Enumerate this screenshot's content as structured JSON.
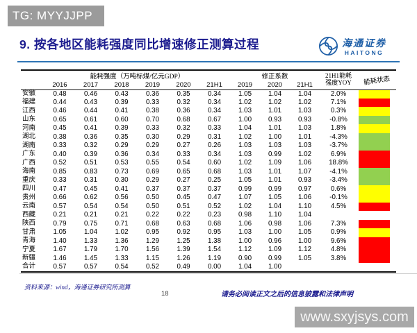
{
  "watermark_top": "TG: MYYJJPP",
  "title": "9. 按各地区能耗强度同比增速修正测算过程",
  "logo": {
    "cn": "海通证券",
    "en": "HAITONG"
  },
  "table": {
    "group_headers": {
      "energy_intensity": "能耗强度（万吨标煤/亿元GDP）",
      "correction": "修正系数",
      "yoy_line1": "21H1能耗",
      "yoy_line2": "强度YOY",
      "status": "能耗状态"
    },
    "year_headers": [
      "2016",
      "2017",
      "2018",
      "2019",
      "2020",
      "21H1",
      "2019",
      "2020",
      "21H1"
    ],
    "status_colors": {
      "red": "#ff0000",
      "yellow": "#ffff00",
      "green": "#92d050"
    },
    "rows": [
      {
        "region": "安徽",
        "values": [
          "0.48",
          "0.46",
          "0.43",
          "0.36",
          "0.35",
          "0.34",
          "1.05",
          "1.04",
          "1.04"
        ],
        "yoy": "2.0%",
        "status": "yellow"
      },
      {
        "region": "福建",
        "values": [
          "0.44",
          "0.43",
          "0.39",
          "0.33",
          "0.32",
          "0.34",
          "1.02",
          "1.02",
          "1.02"
        ],
        "yoy": "7.1%",
        "status": "red"
      },
      {
        "region": "江西",
        "values": [
          "0.46",
          "0.44",
          "0.41",
          "0.38",
          "0.36",
          "0.34",
          "1.03",
          "1.01",
          "1.03"
        ],
        "yoy": "0.3%",
        "status": "yellow"
      },
      {
        "region": "山东",
        "values": [
          "0.65",
          "0.61",
          "0.60",
          "0.70",
          "0.68",
          "0.67",
          "1.00",
          "0.93",
          "0.93"
        ],
        "yoy": "-0.8%",
        "status": "green"
      },
      {
        "region": "河南",
        "values": [
          "0.45",
          "0.41",
          "0.39",
          "0.33",
          "0.32",
          "0.33",
          "1.04",
          "1.01",
          "1.03"
        ],
        "yoy": "1.8%",
        "status": "yellow"
      },
      {
        "region": "湖北",
        "values": [
          "0.38",
          "0.36",
          "0.35",
          "0.30",
          "0.29",
          "0.31",
          "1.02",
          "1.00",
          "1.01"
        ],
        "yoy": "-4.3%",
        "status": "green"
      },
      {
        "region": "湖南",
        "values": [
          "0.33",
          "0.32",
          "0.29",
          "0.29",
          "0.27",
          "0.26",
          "1.03",
          "1.03",
          "1.03"
        ],
        "yoy": "-3.7%",
        "status": "green"
      },
      {
        "region": "广东",
        "values": [
          "0.40",
          "0.39",
          "0.36",
          "0.34",
          "0.33",
          "0.34",
          "1.03",
          "0.99",
          "1.02"
        ],
        "yoy": "6.9%",
        "status": "red"
      },
      {
        "region": "广西",
        "values": [
          "0.52",
          "0.51",
          "0.53",
          "0.55",
          "0.54",
          "0.60",
          "1.02",
          "1.09",
          "1.06"
        ],
        "yoy": "18.8%",
        "status": "red"
      },
      {
        "region": "海南",
        "values": [
          "0.85",
          "0.83",
          "0.73",
          "0.69",
          "0.65",
          "0.68",
          "1.03",
          "1.01",
          "1.07"
        ],
        "yoy": "-4.1%",
        "status": "green"
      },
      {
        "region": "重庆",
        "values": [
          "0.33",
          "0.31",
          "0.30",
          "0.29",
          "0.27",
          "0.25",
          "1.05",
          "1.01",
          "0.93"
        ],
        "yoy": "-3.4%",
        "status": "green"
      },
      {
        "region": "四川",
        "values": [
          "0.47",
          "0.45",
          "0.41",
          "0.37",
          "0.37",
          "0.37",
          "0.99",
          "0.99",
          "0.97"
        ],
        "yoy": "0.6%",
        "status": "yellow"
      },
      {
        "region": "贵州",
        "values": [
          "0.66",
          "0.62",
          "0.56",
          "0.50",
          "0.45",
          "0.47",
          "1.07",
          "1.05",
          "1.06"
        ],
        "yoy": "-0.1%",
        "status": "yellow"
      },
      {
        "region": "云南",
        "values": [
          "0.57",
          "0.54",
          "0.54",
          "0.50",
          "0.51",
          "0.52",
          "1.02",
          "1.04",
          "1.10"
        ],
        "yoy": "4.5%",
        "status": "red"
      },
      {
        "region": "西藏",
        "values": [
          "0.21",
          "0.21",
          "0.21",
          "0.22",
          "0.22",
          "0.23",
          "0.98",
          "1.10",
          "1.04"
        ],
        "yoy": "",
        "status": "none"
      },
      {
        "region": "陕西",
        "values": [
          "0.79",
          "0.75",
          "0.71",
          "0.68",
          "0.63",
          "0.68",
          "1.06",
          "0.98",
          "1.06"
        ],
        "yoy": "7.3%",
        "status": "red"
      },
      {
        "region": "甘肃",
        "values": [
          "1.05",
          "1.04",
          "1.02",
          "0.95",
          "0.92",
          "0.95",
          "1.03",
          "1.00",
          "1.05"
        ],
        "yoy": "0.9%",
        "status": "yellow"
      },
      {
        "region": "青海",
        "values": [
          "1.40",
          "1.33",
          "1.36",
          "1.29",
          "1.25",
          "1.38",
          "1.00",
          "0.96",
          "1.00"
        ],
        "yoy": "9.6%",
        "status": "red"
      },
      {
        "region": "宁夏",
        "values": [
          "1.67",
          "1.79",
          "1.70",
          "1.56",
          "1.39",
          "1.54",
          "1.12",
          "1.09",
          "1.12"
        ],
        "yoy": "4.8%",
        "status": "red"
      },
      {
        "region": "新疆",
        "values": [
          "1.46",
          "1.45",
          "1.33",
          "1.15",
          "1.26",
          "1.19",
          "0.90",
          "0.99",
          "1.05"
        ],
        "yoy": "3.8%",
        "status": "red"
      },
      {
        "region": "合计",
        "values": [
          "0.57",
          "0.57",
          "0.54",
          "0.52",
          "0.49",
          "0.00",
          "1.04",
          "1.00",
          ""
        ],
        "yoy": "",
        "status": "none"
      }
    ]
  },
  "footer": {
    "source": "资料来源：wind，海通证券研究所测算",
    "page_number": "18",
    "disclaimer": "请务必阅读正文之后的信息披露和法律声明"
  },
  "watermark_bottom": "www.sxyjsys.com"
}
